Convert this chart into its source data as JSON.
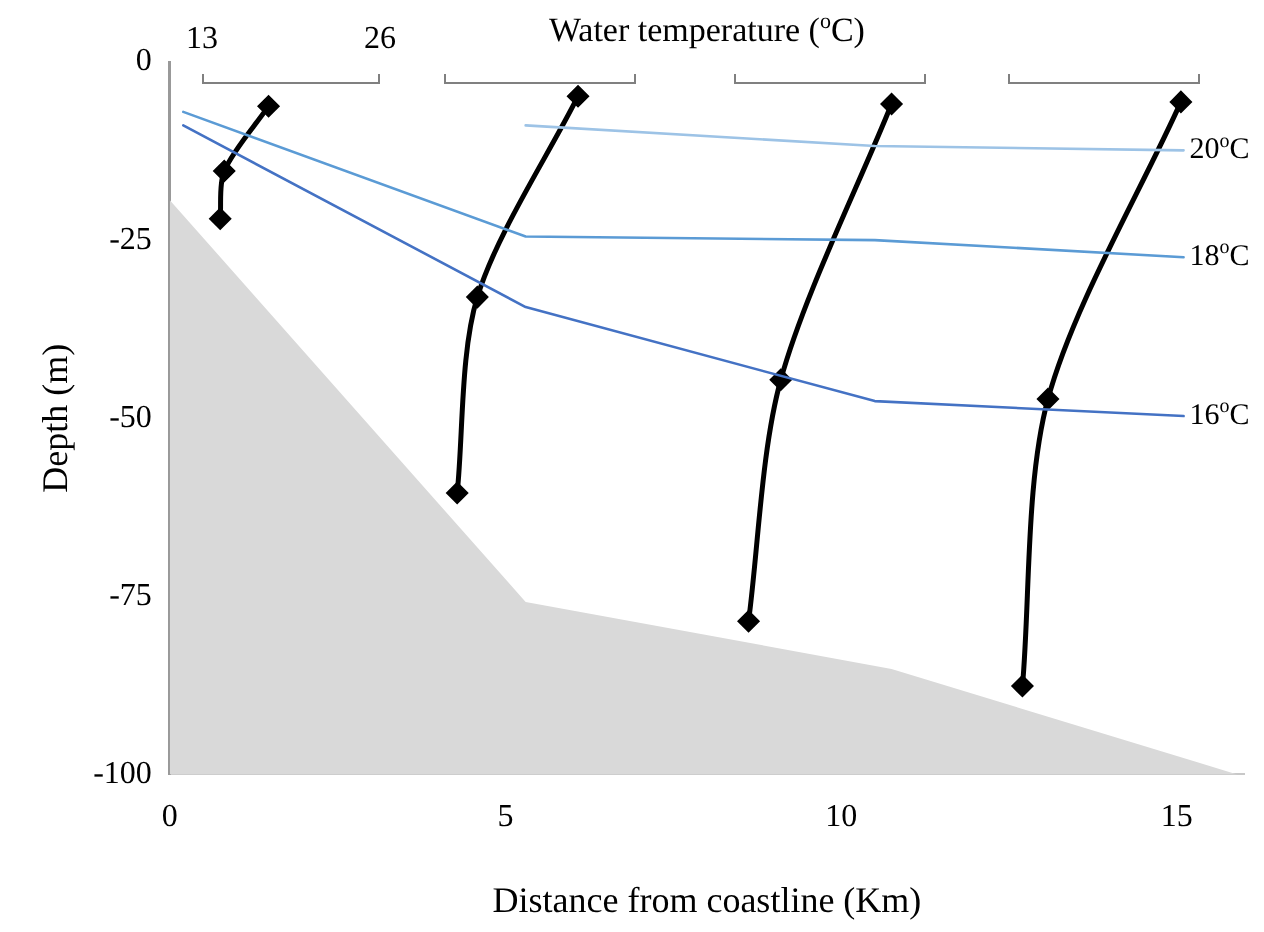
{
  "chart_data": {
    "type": "line",
    "xlabel": "Distance from coastline (Km)",
    "ylabel": "Depth (m)",
    "x2label": "Water temperature ($^{o}$C)",
    "xlim": [
      0,
      16
    ],
    "xticks": [
      0,
      5,
      10,
      15
    ],
    "ylim": [
      -100,
      0
    ],
    "yticks": [
      0,
      -25,
      -50,
      -75,
      -100
    ],
    "grid": false,
    "legend": false,
    "series": [
      {
        "type": "area",
        "color": "#d9d9d9",
        "marker": "none",
        "x": [
          0,
          0,
          5.3,
          10.75,
          15.9
        ],
        "values": [
          -100,
          -19.4,
          -75.8,
          -85.2,
          -100
        ]
      },
      {
        "type": "line",
        "name": "20$^{o}$C",
        "color": "#9dc3e6",
        "marker": "none",
        "x": [
          5.3,
          10.5,
          15.1
        ],
        "values": [
          -8.9,
          -11.8,
          -12.4
        ]
      },
      {
        "type": "line",
        "name": "18$^{o}$C",
        "color": "#5b9bd5",
        "marker": "none",
        "x": [
          0.2,
          5.3,
          10.5,
          15.1
        ],
        "values": [
          -7,
          -24.5,
          -25,
          -27.4
        ]
      },
      {
        "type": "line",
        "name": "16$^{o}$C",
        "color": "#4472c4",
        "marker": "none",
        "x": [
          0.2,
          5.3,
          10.5,
          15.1
        ],
        "values": [
          -8.9,
          -34.4,
          -47.6,
          -49.7
        ]
      },
      {
        "type": "line",
        "color": "#000000",
        "marker": "diamond",
        "x": [
          1.47,
          0.81,
          0.75
        ],
        "values": [
          -6.2,
          -15.3,
          -22
        ]
      },
      {
        "type": "line",
        "color": "#000000",
        "marker": "diamond",
        "x": [
          6.08,
          4.58,
          4.28
        ],
        "values": [
          -4.8,
          -33,
          -60.5
        ]
      },
      {
        "type": "line",
        "color": "#000000",
        "marker": "diamond",
        "x": [
          10.75,
          9.1,
          8.62
        ],
        "values": [
          -5.9,
          -44.6,
          -78.5
        ]
      },
      {
        "type": "line",
        "color": "#000000",
        "marker": "diamond",
        "x": [
          15.06,
          13.08,
          12.7
        ],
        "values": [
          -5.6,
          -47.3,
          -87.6
        ]
      }
    ],
    "annotations": [
      "13",
      "26"
    ]
  }
}
